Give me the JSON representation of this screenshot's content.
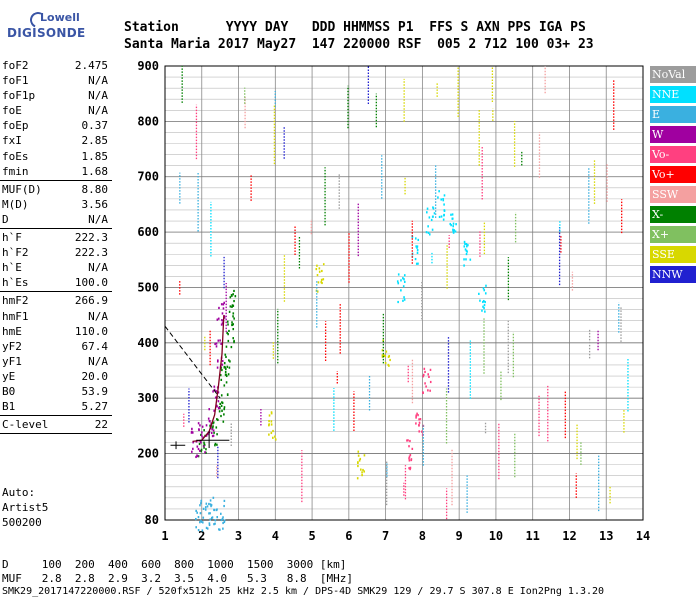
{
  "logo": {
    "line1": "Lowell",
    "line2": "DIGISONDE"
  },
  "header": {
    "line1": "Station      YYYY DAY   DDD HHMMSS P1  FFS S AXN PPS IGA PS",
    "line2": "Santa Maria 2017 May27  147 220000 RSF  005 2 712 100 03+ 23"
  },
  "params": [
    {
      "name": "foF2",
      "value": "2.475"
    },
    {
      "name": "foF1",
      "value": "N/A"
    },
    {
      "name": "foF1p",
      "value": "N/A"
    },
    {
      "name": "foE",
      "value": "N/A"
    },
    {
      "name": "foEp",
      "value": "0.37"
    },
    {
      "name": "fxI",
      "value": "2.85"
    },
    {
      "name": "foEs",
      "value": "1.85"
    },
    {
      "name": "fmin",
      "value": "1.68"
    },
    {
      "sep": true
    },
    {
      "name": "MUF(D)",
      "value": "8.80"
    },
    {
      "name": "M(D)",
      "value": "3.56"
    },
    {
      "name": "D",
      "value": "N/A"
    },
    {
      "sep": true
    },
    {
      "name": "h`F",
      "value": "222.3"
    },
    {
      "name": "h`F2",
      "value": "222.3"
    },
    {
      "name": "h`E",
      "value": "N/A"
    },
    {
      "name": "h`Es",
      "value": "100.0"
    },
    {
      "sep": true
    },
    {
      "name": "hmF2",
      "value": "266.9"
    },
    {
      "name": "hmF1",
      "value": "N/A"
    },
    {
      "name": "hmE",
      "value": "110.0"
    },
    {
      "name": "yF2",
      "value": "67.4"
    },
    {
      "name": "yF1",
      "value": "N/A"
    },
    {
      "name": "yE",
      "value": "20.0"
    },
    {
      "name": "B0",
      "value": "53.9"
    },
    {
      "name": "B1",
      "value": "5.27"
    },
    {
      "sep": true
    },
    {
      "name": "C-level",
      "value": "22"
    },
    {
      "sep": true
    }
  ],
  "auto": {
    "line1": "Auto:",
    "line2": "Artist5",
    "line3": "500200"
  },
  "legend": [
    {
      "label": "NoVal",
      "color": "#9c9c9c"
    },
    {
      "label": "NNE",
      "color": "#00e0ff"
    },
    {
      "label": "E",
      "color": "#3ab0e0"
    },
    {
      "label": "W",
      "color": "#a000a0"
    },
    {
      "label": "Vo-",
      "color": "#ff4080"
    },
    {
      "label": "Vo+",
      "color": "#ff0000"
    },
    {
      "label": "SSW",
      "color": "#f4a0a0"
    },
    {
      "label": "X-",
      "color": "#008000"
    },
    {
      "label": "X+",
      "color": "#80c060"
    },
    {
      "label": "SSE",
      "color": "#d8d800"
    },
    {
      "label": "NNW",
      "color": "#2020d0"
    }
  ],
  "footer": {
    "line1": "D     100  200  400  600  800  1000  1500  3000 [km]",
    "line2": "MUF   2.8  2.8  2.9  3.2  3.5  4.0   5.3   8.8  [MHz]",
    "line3": "SMK29_2017147220000.RSF / 520fx512h 25 kHz 2.5 km / DPS-4D SMK29 129 / 29.7 S 307.8 E Ion2Png 1.3.20"
  },
  "chart_data": {
    "type": "scatter",
    "title": "",
    "xlabel": "",
    "ylabel": "",
    "xlim": [
      1,
      14
    ],
    "ylim": [
      80,
      900
    ],
    "x_ticks": [
      1,
      2,
      3,
      4,
      5,
      6,
      7,
      8,
      9,
      10,
      11,
      12,
      13,
      14
    ],
    "y_ticks": [
      80,
      200,
      300,
      400,
      500,
      600,
      700,
      800,
      900
    ],
    "grid": true,
    "series": [
      {
        "name": "X-",
        "color": "#008000",
        "x": [
          2.0,
          2.3,
          2.5,
          2.6,
          2.7,
          2.75,
          2.8
        ],
        "y": [
          220,
          240,
          280,
          330,
          380,
          430,
          470
        ]
      },
      {
        "name": "W",
        "color": "#a000a0",
        "x": [
          1.8,
          2.0,
          2.2,
          2.35,
          2.45,
          2.5
        ],
        "y": [
          220,
          230,
          260,
          300,
          380,
          450
        ]
      },
      {
        "name": "NNE",
        "color": "#00e0ff",
        "x": [
          7.4,
          7.8,
          8.2,
          8.5,
          8.8,
          9.2,
          9.6
        ],
        "y": [
          500,
          570,
          620,
          650,
          620,
          560,
          480
        ]
      },
      {
        "name": "Vo-",
        "color": "#ff4080",
        "x": [
          7.6,
          7.9,
          8.1
        ],
        "y": [
          200,
          260,
          330
        ]
      },
      {
        "name": "E",
        "color": "#3ab0e0",
        "x": [
          1.9,
          2.1,
          2.3,
          2.5
        ],
        "y": [
          90,
          85,
          95,
          90
        ]
      },
      {
        "name": "SSE",
        "color": "#d8d800",
        "x": [
          3.9,
          5.2,
          6.3,
          7.0
        ],
        "y": [
          250,
          520,
          180,
          380
        ]
      }
    ]
  }
}
